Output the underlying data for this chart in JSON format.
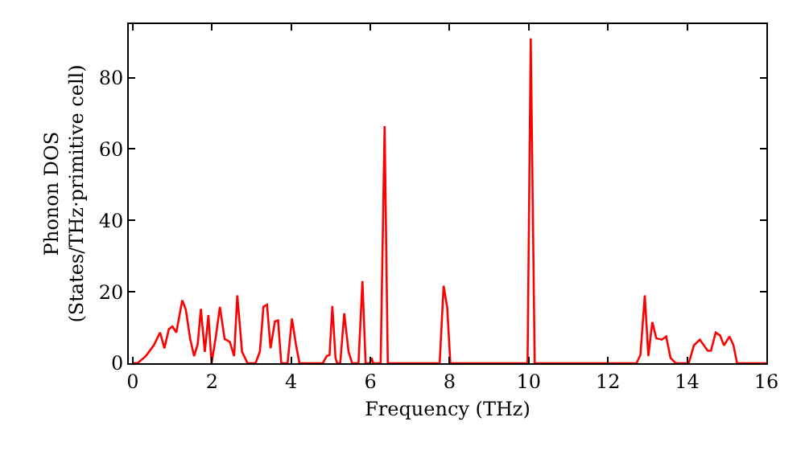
{
  "chart_data": {
    "type": "line",
    "xlabel": "Frequency (THz)",
    "ylabel": "Phonon DOS\n(States/THz·primitive cell)",
    "xlim": [
      -0.1,
      16
    ],
    "ylim": [
      0,
      95
    ],
    "xticks": [
      0,
      2,
      4,
      6,
      8,
      10,
      12,
      14,
      16
    ],
    "yticks": [
      0,
      20,
      40,
      60,
      80
    ],
    "marker": "none",
    "line_style": "solid",
    "series": [
      {
        "color": "#ff0000",
        "x": [
          0,
          0.12,
          0.33,
          0.53,
          0.69,
          0.8,
          0.91,
          1.0,
          1.1,
          1.25,
          1.34,
          1.45,
          1.55,
          1.64,
          1.72,
          1.82,
          1.91,
          1.99,
          2.09,
          2.2,
          2.32,
          2.45,
          2.56,
          2.64,
          2.76,
          2.9,
          3.1,
          3.21,
          3.3,
          3.39,
          3.48,
          3.59,
          3.67,
          3.75,
          3.91,
          4.02,
          4.12,
          4.21,
          4.8,
          4.9,
          4.97,
          5.04,
          5.12,
          5.16,
          5.24,
          5.34,
          5.45,
          5.54,
          5.7,
          5.8,
          5.88,
          5.99,
          6.03,
          6.07,
          6.26,
          6.36,
          6.44,
          7.75,
          7.85,
          7.94,
          8.02,
          9.97,
          10.05,
          10.15,
          12.72,
          12.82,
          12.93,
          13.02,
          13.12,
          13.22,
          13.36,
          13.47,
          13.58,
          13.71,
          14.04,
          14.17,
          14.32,
          14.52,
          14.6,
          14.72,
          14.83,
          14.93,
          15.07,
          15.17,
          15.26,
          16
        ],
        "values": [
          0,
          0,
          2,
          5,
          8.6,
          4.2,
          9.5,
          10.3,
          8.6,
          17.6,
          15,
          6.8,
          2,
          5.3,
          15.2,
          3.2,
          13.5,
          0,
          6.8,
          15.8,
          6.8,
          6,
          2,
          19,
          3.2,
          0,
          0,
          3.2,
          15.8,
          16.4,
          4.2,
          11.7,
          12,
          0,
          0,
          12.5,
          5.3,
          0,
          0,
          2,
          2.3,
          16,
          1.5,
          0,
          0,
          14,
          3.2,
          0,
          0,
          23,
          0,
          0,
          1.5,
          0,
          0,
          66.4,
          0,
          0,
          21.7,
          15.7,
          0,
          0,
          91,
          0,
          0,
          2.3,
          19,
          2,
          11.5,
          7,
          6.6,
          7.5,
          1.5,
          0,
          0,
          5,
          6.6,
          3.5,
          3.5,
          8.6,
          7.8,
          5,
          7.5,
          5,
          0,
          0
        ]
      }
    ]
  }
}
